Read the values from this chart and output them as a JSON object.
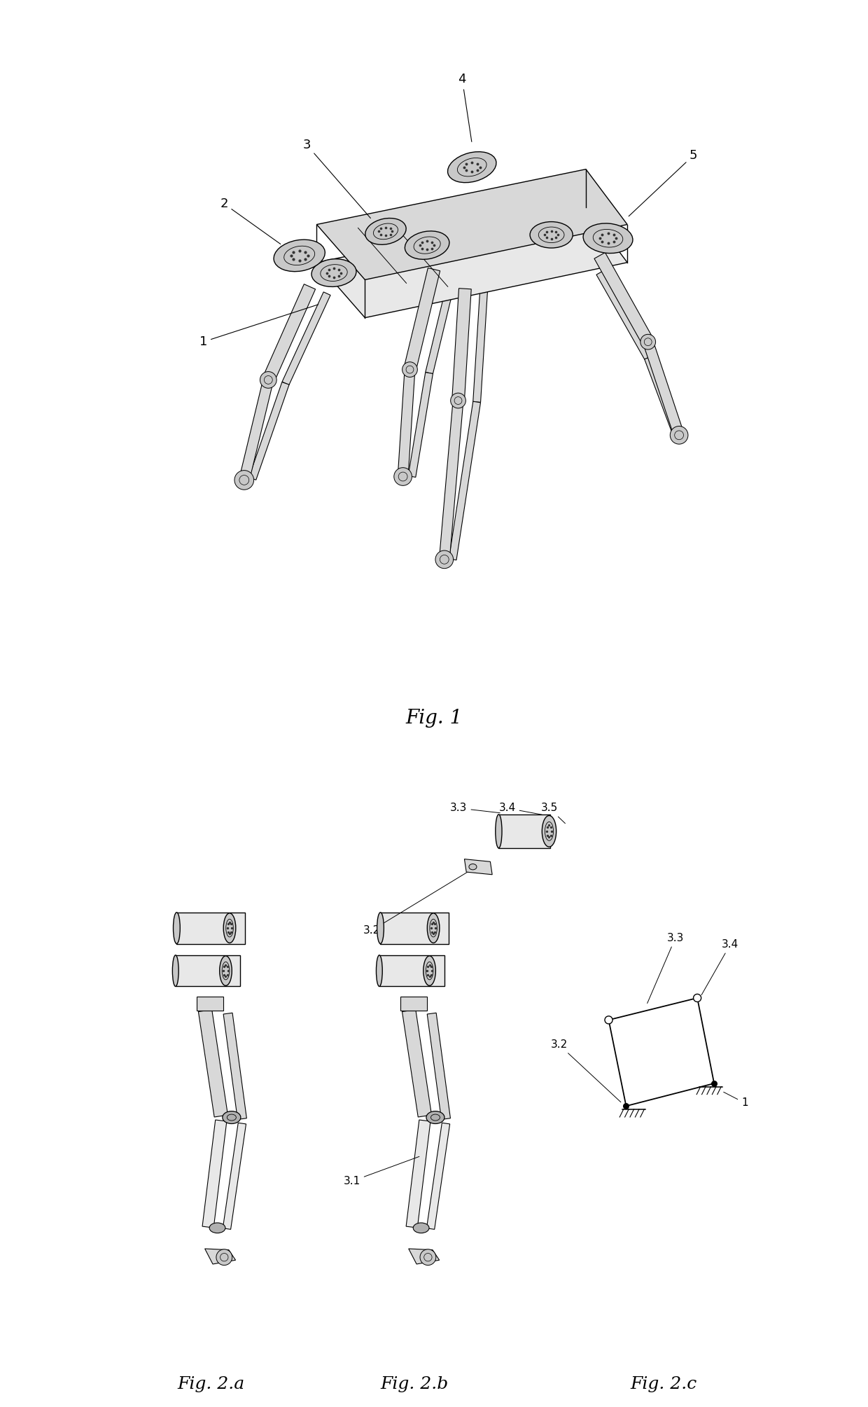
{
  "background_color": "#ffffff",
  "fig_width": 12.4,
  "fig_height": 20.09,
  "dpi": 100,
  "fig1_label": "Fig. 1",
  "fig2a_label": "Fig. 2.a",
  "fig2b_label": "Fig. 2.b",
  "fig2c_label": "Fig. 2.c",
  "line_color": "#000000",
  "lw": 1.0,
  "annotation_fontsize": 12,
  "caption_fontsize": 20,
  "body_color": "#d8d8d8",
  "motor_color": "#c8c8c8",
  "joint_color": "#b0b0b0",
  "dark_gray": "#333333",
  "light_gray": "#e8e8e8"
}
